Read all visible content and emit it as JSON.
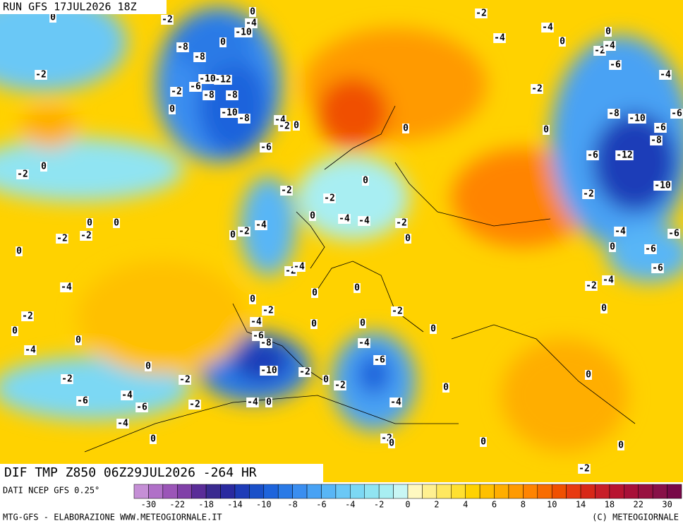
{
  "header": {
    "run": "RUN GFS 17JUL2026 18Z",
    "field": "DIF TMP Z850 06Z29JUL2026 -264 HR"
  },
  "contour_labels": [
    0,
    -2,
    0,
    -4,
    -10,
    -2,
    -4,
    0,
    -4,
    0,
    -8,
    0,
    -2,
    -4,
    -8,
    -2,
    -6,
    -4,
    -12,
    -10,
    -6,
    -2,
    -8,
    -8,
    -2,
    0,
    -10,
    -8,
    -4,
    -2,
    0,
    -8,
    -10,
    -6,
    -6,
    0,
    0,
    -8,
    -6,
    -6,
    -12,
    0,
    -2,
    0,
    -10,
    -2,
    -2,
    -2,
    0,
    -4,
    -4,
    -2,
    0,
    0,
    -4,
    -2,
    0,
    0,
    -2,
    -2,
    -4,
    -6,
    0,
    -6,
    0,
    -2,
    -4,
    -6,
    -4,
    0,
    -2,
    -4,
    0,
    0,
    -2,
    -2,
    0,
    -2,
    -4,
    0,
    0,
    0,
    0,
    -6,
    -8,
    0,
    -4,
    -4,
    -6,
    0,
    -10,
    -2,
    0,
    -2,
    -2,
    -2,
    0,
    0,
    -4,
    -6,
    -6,
    -2,
    -4,
    0,
    -4,
    -4,
    0,
    -2,
    0,
    0,
    0,
    -2
  ],
  "legend": {
    "source": "DATI NCEP GFS 0.25°",
    "ticks": [
      -30,
      -22,
      -18,
      -14,
      -10,
      -8,
      -6,
      -4,
      -2,
      0,
      2,
      4,
      6,
      8,
      10,
      14,
      18,
      22,
      30
    ],
    "colors": [
      "#c58fd6",
      "#b070c8",
      "#9b55b8",
      "#8040a8",
      "#5a2c98",
      "#3a2a90",
      "#2a2aa0",
      "#1e3cb8",
      "#1a50c8",
      "#1e64dc",
      "#2a7ae6",
      "#3a8ef0",
      "#48a2f4",
      "#58b6f6",
      "#6ac8f6",
      "#7cd8f4",
      "#90e4f2",
      "#a8eef2",
      "#c8f6f4",
      "#fff8c0",
      "#fff090",
      "#ffe860",
      "#ffe030",
      "#ffd200",
      "#ffc000",
      "#ffae00",
      "#ff9a00",
      "#ff8400",
      "#f86c00",
      "#f05000",
      "#e83a10",
      "#d82818",
      "#c81e28",
      "#b81430",
      "#a81038",
      "#981040",
      "#881048",
      "#780848"
    ]
  },
  "footer": {
    "left": "MTG-GFS - ELABORAZIONE WWW.METEOGIORNALE.IT",
    "right": "(C) METEOGIORNALE"
  }
}
